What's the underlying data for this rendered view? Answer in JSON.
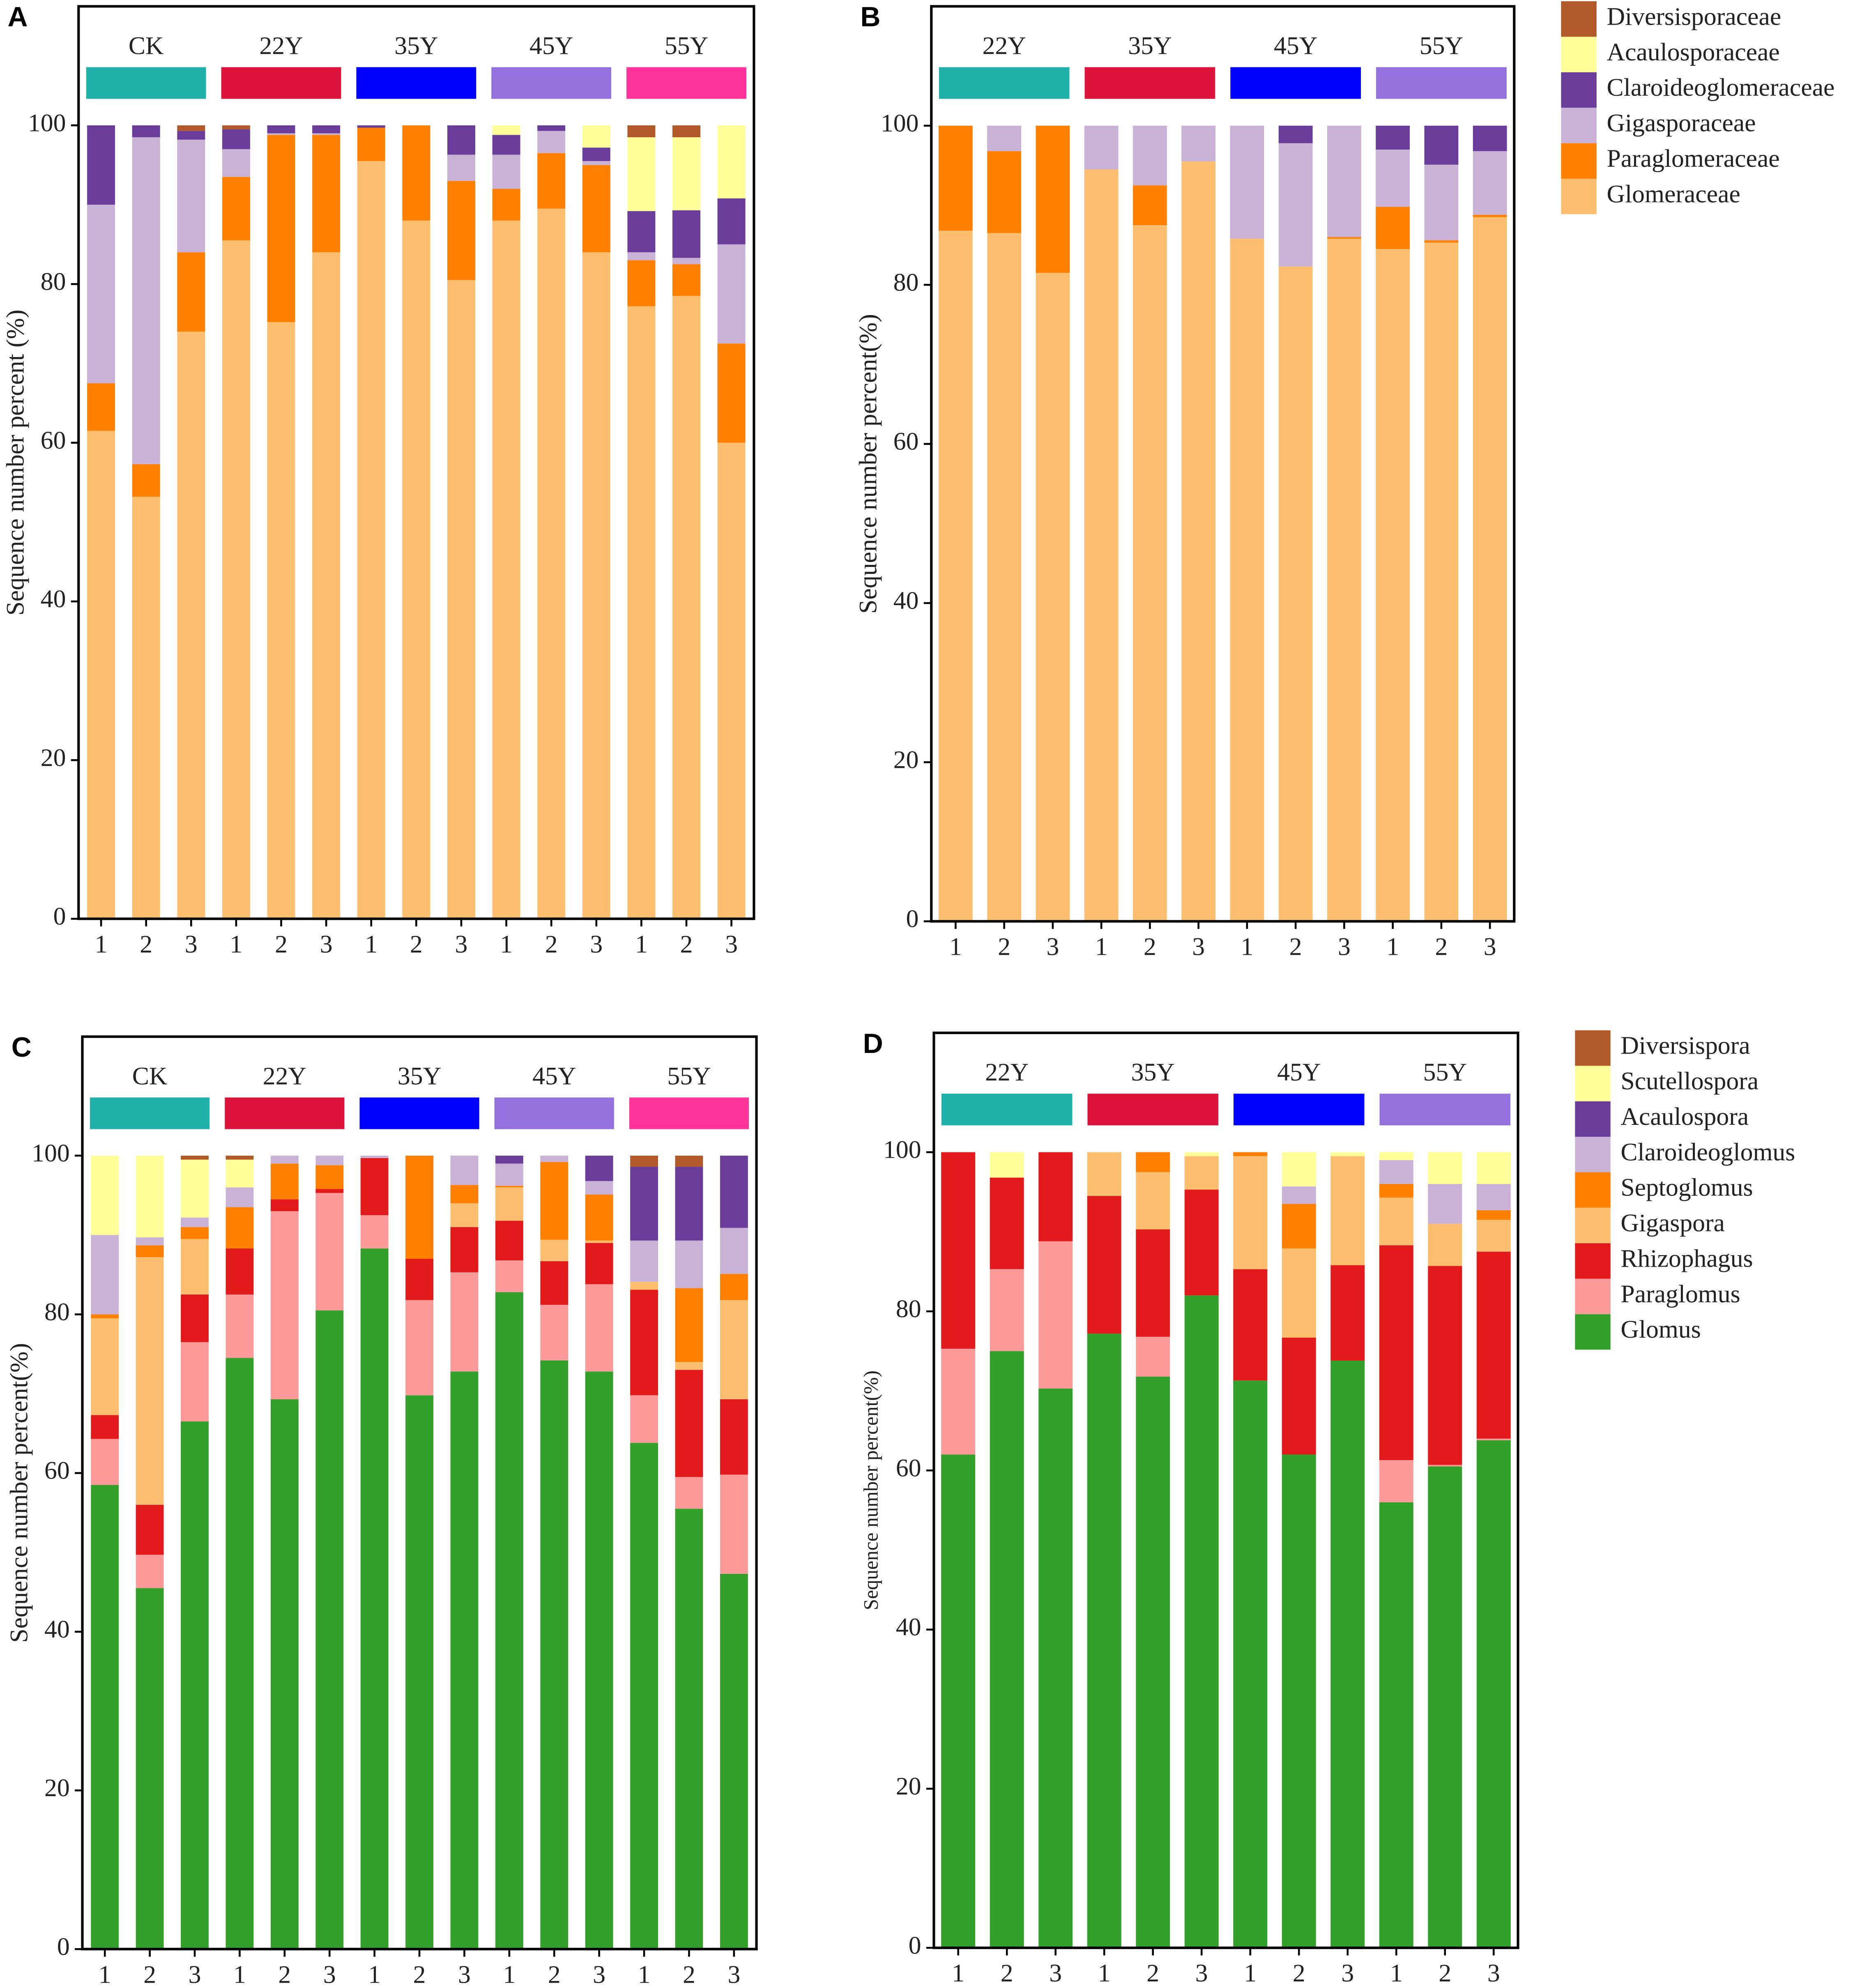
{
  "chart_data": [
    {
      "type": "bar",
      "label": "A",
      "y_label": "Sequence number percent (%)",
      "categories": [
        "1",
        "2",
        "3",
        "1",
        "2",
        "3",
        "1",
        "2",
        "3",
        "1",
        "2",
        "3",
        "1",
        "2",
        "3"
      ],
      "groups": [
        {
          "name": "CK",
          "color": "#20b2aa"
        },
        {
          "name": "22Y",
          "color": "#dc143c"
        },
        {
          "name": "35Y",
          "color": "#0000ff"
        },
        {
          "name": "45Y",
          "color": "#9370db"
        },
        {
          "name": "55Y",
          "color": "#ff3399"
        }
      ],
      "series": [
        {
          "color": "#fdbf6f",
          "values": [
            61.5,
            53.2,
            74,
            85.5,
            75.2,
            84,
            95.5,
            88,
            80.5,
            88,
            89.5,
            84,
            77.2,
            78.5,
            60
          ]
        },
        {
          "color": "#ff7f00",
          "values": [
            6,
            4.1,
            10,
            8,
            23.6,
            14.8,
            4.2,
            12,
            12.5,
            4,
            7,
            11,
            5.8,
            4,
            12.5
          ]
        },
        {
          "color": "#cab2d6",
          "values": [
            22.5,
            41.2,
            14.2,
            3.5,
            0.2,
            0.2,
            0,
            0,
            3.3,
            4.3,
            2.8,
            0.5,
            1,
            0.8,
            12.5
          ]
        },
        {
          "color": "#6a3d9a",
          "values": [
            10,
            1.5,
            1.1,
            2.5,
            1,
            1,
            0.3,
            0,
            3.7,
            2.5,
            0.7,
            1.7,
            5.2,
            6,
            5.8
          ]
        },
        {
          "color": "#ffff99",
          "values": [
            0,
            0,
            0,
            0,
            0,
            0,
            0,
            0,
            0,
            1.2,
            0,
            2.8,
            9.3,
            9.2,
            9.2
          ]
        },
        {
          "color": "#b15928",
          "values": [
            0,
            0,
            0.7,
            0.5,
            0,
            0,
            0,
            0,
            0,
            0,
            0,
            0,
            1.5,
            1.5,
            0
          ]
        }
      ],
      "ylim": [
        0,
        115
      ],
      "yticks": [
        0,
        20,
        40,
        60,
        80,
        100
      ],
      "stacked": true,
      "legend": false
    },
    {
      "type": "bar",
      "label": "B",
      "y_label": "Sequence number percent(%)",
      "categories": [
        "1",
        "2",
        "3",
        "1",
        "2",
        "3",
        "1",
        "2",
        "3",
        "1",
        "2",
        "3"
      ],
      "groups": [
        {
          "name": "22Y",
          "color": "#20b2aa"
        },
        {
          "name": "35Y",
          "color": "#dc143c"
        },
        {
          "name": "45Y",
          "color": "#0000ff"
        },
        {
          "name": "55Y",
          "color": "#9370db"
        }
      ],
      "series": [
        {
          "name": "Glomeraceae",
          "color": "#fdbf6f",
          "values": [
            86.8,
            86.5,
            81.5,
            94.5,
            87.5,
            95.5,
            85.8,
            82.3,
            85.8,
            84.5,
            85.3,
            88.5
          ]
        },
        {
          "name": "Paraglomeraceae",
          "color": "#ff7f00",
          "values": [
            13.2,
            10.3,
            18.5,
            0,
            5,
            0,
            0,
            0,
            0.2,
            5.3,
            0.3,
            0.3
          ]
        },
        {
          "name": "Gigasporaceae",
          "color": "#cab2d6",
          "values": [
            0,
            3.2,
            0,
            5.5,
            7.5,
            4.5,
            14.2,
            15.5,
            14,
            7.2,
            9.5,
            8
          ]
        },
        {
          "name": "Claroideoglomeraceae",
          "color": "#6a3d9a",
          "values": [
            0,
            0,
            0,
            0,
            0,
            0,
            0,
            2.2,
            0,
            3,
            4.9,
            3.2
          ]
        },
        {
          "name": "Acaulosporaceae",
          "color": "#ffff99",
          "values": [
            0,
            0,
            0,
            0,
            0,
            0,
            0,
            0,
            0,
            0,
            0,
            0
          ]
        },
        {
          "name": "Diversisporaceae",
          "color": "#b15928",
          "values": [
            0,
            0,
            0,
            0,
            0,
            0,
            0,
            0,
            0,
            0,
            0,
            0
          ]
        }
      ],
      "ylim": [
        0,
        115
      ],
      "yticks": [
        0,
        20,
        40,
        60,
        80,
        100
      ],
      "stacked": true,
      "legend": true
    },
    {
      "type": "bar",
      "label": "C",
      "y_label": "Sequence number percent(%)",
      "categories": [
        "1",
        "2",
        "3",
        "1",
        "2",
        "3",
        "1",
        "2",
        "3",
        "1",
        "2",
        "3",
        "1",
        "2",
        "3"
      ],
      "groups": [
        {
          "name": "CK",
          "color": "#20b2aa"
        },
        {
          "name": "22Y",
          "color": "#dc143c"
        },
        {
          "name": "35Y",
          "color": "#0000ff"
        },
        {
          "name": "45Y",
          "color": "#9370db"
        },
        {
          "name": "55Y",
          "color": "#ff3399"
        }
      ],
      "series": [
        {
          "color": "#33a02c",
          "values": [
            58.5,
            45.5,
            66.5,
            74.5,
            69.3,
            80.5,
            88.3,
            69.8,
            72.8,
            82.8,
            74.2,
            72.8,
            63.8,
            55.5,
            47.3
          ]
        },
        {
          "color": "#fb9a99",
          "values": [
            5.8,
            4.2,
            10,
            8,
            23.7,
            14.8,
            4.2,
            12,
            12.5,
            4,
            7,
            11,
            6,
            4,
            12.5
          ]
        },
        {
          "color": "#e31a1c",
          "values": [
            3,
            6.3,
            6,
            5.8,
            1.5,
            0.5,
            7.2,
            5.2,
            5.7,
            5,
            5.5,
            5.2,
            13.3,
            13.5,
            9.5
          ]
        },
        {
          "color": "#fdbf6f",
          "values": [
            12.2,
            31.2,
            7,
            0,
            0,
            0,
            0,
            0,
            3,
            4.2,
            2.7,
            0.3,
            1,
            1,
            12.5
          ]
        },
        {
          "color": "#ff7f00",
          "values": [
            0.5,
            1.5,
            1.5,
            5.2,
            4.5,
            3,
            0,
            13,
            2.3,
            0.2,
            9.8,
            5.8,
            0,
            9.3,
            3.3
          ]
        },
        {
          "color": "#cab2d6",
          "values": [
            10,
            1,
            1.2,
            2.5,
            1,
            1.2,
            0.3,
            0,
            3.7,
            2.8,
            0.8,
            1.7,
            5.2,
            6,
            5.8
          ]
        },
        {
          "color": "#6a3d9a",
          "values": [
            0,
            0,
            0,
            0,
            0,
            0,
            0,
            0,
            0,
            1,
            0,
            3.2,
            9.3,
            9.3,
            9.1
          ]
        },
        {
          "color": "#ffff99",
          "values": [
            10,
            10.3,
            7.3,
            3.5,
            0,
            0,
            0,
            0,
            0,
            0,
            0,
            0,
            0,
            0,
            0
          ]
        },
        {
          "color": "#b15928",
          "values": [
            0,
            0,
            0.5,
            0.5,
            0,
            0,
            0,
            0,
            0,
            0,
            0,
            0,
            1.4,
            1.4,
            0
          ]
        }
      ],
      "ylim": [
        0,
        115
      ],
      "yticks": [
        0,
        20,
        40,
        60,
        80,
        100
      ],
      "stacked": true,
      "legend": false
    },
    {
      "type": "bar",
      "label": "D",
      "y_label": "Sequence number percent(%)",
      "categories": [
        "1",
        "2",
        "3",
        "1",
        "2",
        "3",
        "1",
        "2",
        "3",
        "1",
        "2",
        "3"
      ],
      "groups": [
        {
          "name": "22Y",
          "color": "#20b2aa"
        },
        {
          "name": "35Y",
          "color": "#dc143c"
        },
        {
          "name": "45Y",
          "color": "#0000ff"
        },
        {
          "name": "55Y",
          "color": "#9370db"
        }
      ],
      "series": [
        {
          "name": "Glomus",
          "color": "#33a02c",
          "values": [
            62,
            75,
            70.3,
            77.2,
            71.8,
            82,
            71.3,
            62,
            73.8,
            56,
            60.5,
            63.8
          ]
        },
        {
          "name": "Paraglomus",
          "color": "#fb9a99",
          "values": [
            13.3,
            10.3,
            18.5,
            0,
            5,
            0,
            0,
            0,
            0,
            5.3,
            0.2,
            0.2
          ]
        },
        {
          "name": "Rhizophagus",
          "color": "#e31a1c",
          "values": [
            24.7,
            11.5,
            11.2,
            17.3,
            13.5,
            13.3,
            14,
            14.7,
            12,
            27,
            25,
            23.5
          ]
        },
        {
          "name": "Gigaspora",
          "color": "#fdbf6f",
          "values": [
            0,
            0,
            0,
            5.5,
            7.2,
            4.2,
            14.2,
            11.2,
            13.7,
            6,
            5.3,
            4
          ]
        },
        {
          "name": "Septoglomus",
          "color": "#ff7f00",
          "values": [
            0,
            0,
            0,
            0,
            2.5,
            0,
            0.5,
            5.6,
            0,
            1.7,
            0,
            1.2
          ]
        },
        {
          "name": "Claroideoglomus",
          "color": "#cab2d6",
          "values": [
            0,
            0,
            0,
            0,
            0,
            0,
            0,
            2.2,
            0,
            3,
            5,
            3.3
          ]
        },
        {
          "name": "Acaulospora",
          "color": "#6a3d9a",
          "values": [
            0,
            0,
            0,
            0,
            0,
            0,
            0,
            0,
            0,
            0,
            0,
            0
          ]
        },
        {
          "name": "Scutellospora",
          "color": "#ffff99",
          "values": [
            0,
            3.2,
            0,
            0,
            0,
            0.5,
            0,
            4.3,
            0.5,
            1,
            4,
            4
          ]
        },
        {
          "name": "Diversispora",
          "color": "#b15928",
          "values": [
            0,
            0,
            0,
            0,
            0,
            0,
            0,
            0,
            0,
            0,
            0,
            0
          ]
        }
      ],
      "ylim": [
        0,
        115
      ],
      "yticks": [
        0,
        20,
        40,
        60,
        80,
        100
      ],
      "stacked": true,
      "legend": true
    }
  ]
}
